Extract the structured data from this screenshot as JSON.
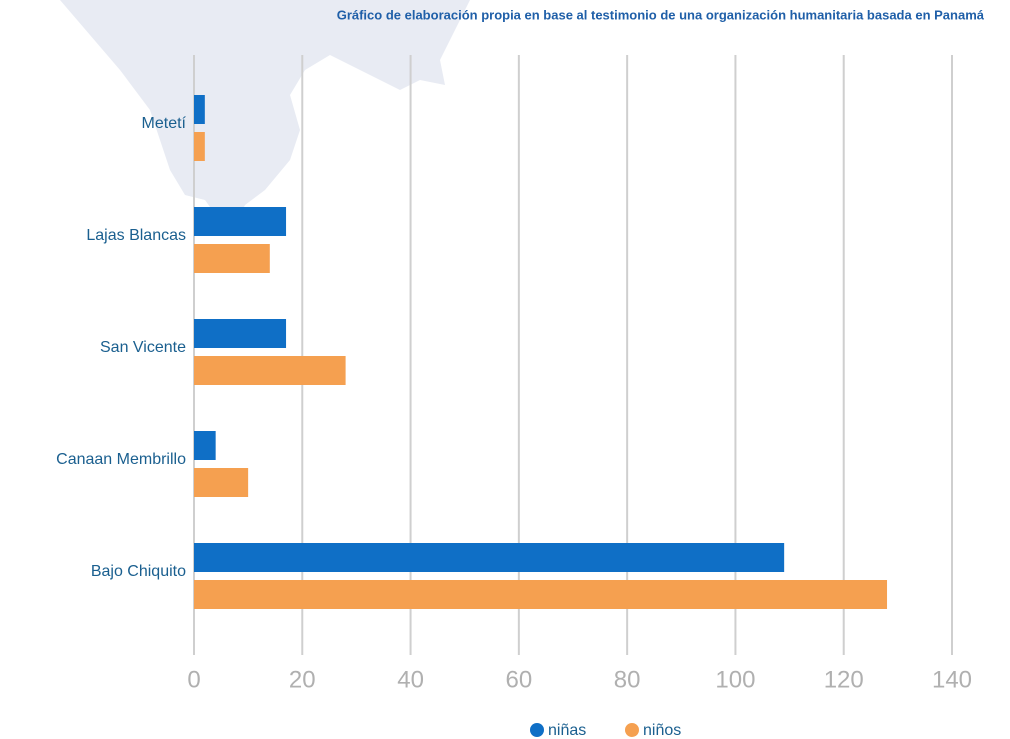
{
  "chart_data": {
    "type": "hbar",
    "subtitle": "Gráfico de elaboración propia en base al testimonio de una organización humanitaria basada en Panamá",
    "categories": [
      "Metetí",
      "Lajas Blancas",
      "San Vicente",
      "Canaan Membrillo",
      "Bajo Chiquito"
    ],
    "series": [
      {
        "name": "niñas",
        "color": "#0f6fc6",
        "values": [
          2,
          17,
          17,
          4,
          109
        ]
      },
      {
        "name": "niños",
        "color": "#f5a050",
        "values": [
          2,
          14,
          28,
          10,
          128
        ]
      }
    ],
    "xlim": [
      0,
      140
    ],
    "xticks": [
      0,
      20,
      40,
      60,
      80,
      100,
      120,
      140
    ],
    "grid": true,
    "legend": "bottom"
  }
}
